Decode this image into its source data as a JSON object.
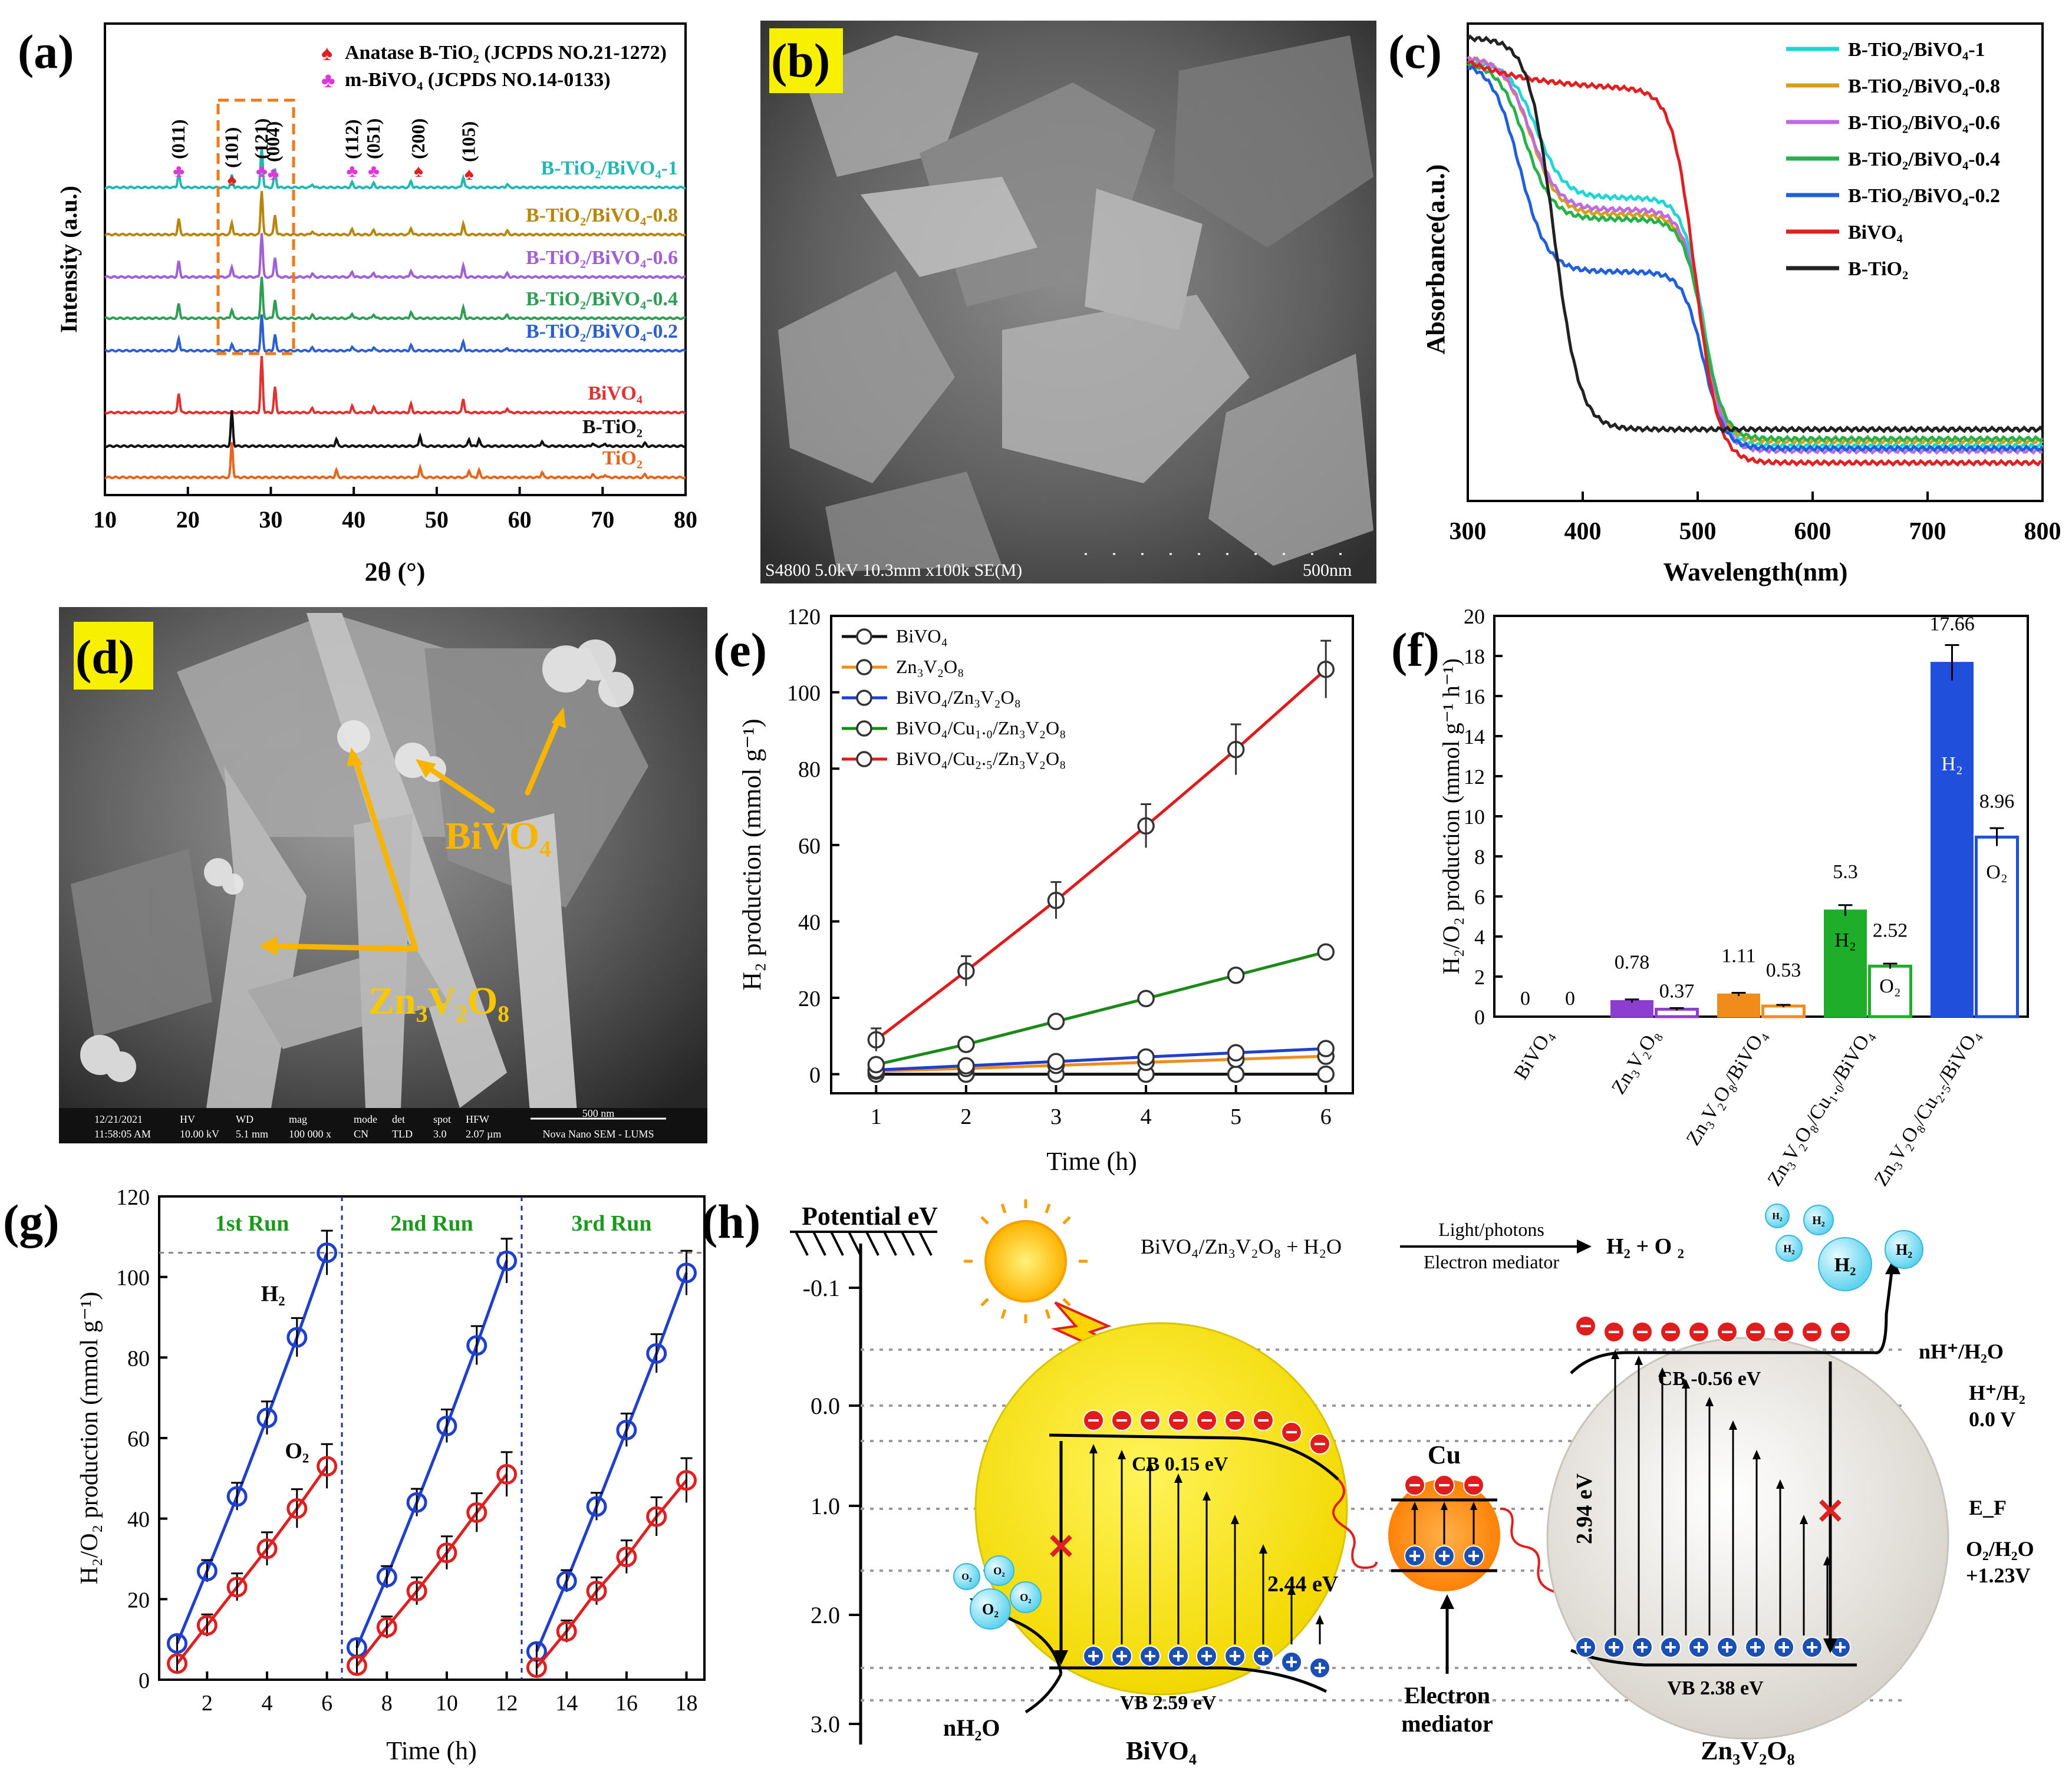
{
  "figure": {
    "panel_labels": [
      "(a)",
      "(b)",
      "(c)",
      "(d)",
      "(e)",
      "(f)",
      "(g)",
      "(h)"
    ]
  },
  "panel_a": {
    "ylabel": "Intensity (a.u.)",
    "xlabel": "2θ (°)",
    "xticks": [
      "10",
      "20",
      "30",
      "40",
      "50",
      "60",
      "70",
      "80"
    ],
    "legend": [
      "Anatase B-TiO₂ (JCPDS NO.21-1272)",
      "m-BiVO₄ (JCPDS NO.14-0133)"
    ],
    "peak_labels": [
      "(011)",
      "(101)",
      "(121)",
      "(004)",
      "(112)",
      "(051)",
      "(200)",
      "(105)"
    ],
    "trace_labels": [
      "B-TiO₂/BiVO₄-1",
      "B-TiO₂/BiVO₄-0.8",
      "B-TiO₂/BiVO₄-0.6",
      "B-TiO₂/BiVO₄-0.4",
      "B-TiO₂/BiVO₄-0.2",
      "BiVO₄",
      "B-TiO₂",
      "TiO₂"
    ],
    "trace_colors": [
      "#21b7b5",
      "#b8860b",
      "#a15fd6",
      "#2e9e55",
      "#2c5fcf",
      "#e03232",
      "#111111",
      "#e8631c"
    ]
  },
  "panel_b": {
    "scalebar_info": "S4800 5.0kV 10.3mm x100k SE(M)",
    "scalebar_len": "500nm"
  },
  "panel_c": {
    "ylabel": "Absorbance(a.u.)",
    "xlabel": "Wavelength(nm)",
    "xticks": [
      "300",
      "400",
      "500",
      "600",
      "700",
      "800"
    ],
    "legend": [
      "B-TiO₂/BiVO₄-1",
      "B-TiO₂/BiVO₄-0.8",
      "B-TiO₂/BiVO₄-0.6",
      "B-TiO₂/BiVO₄-0.4",
      "B-TiO₂/BiVO₄-0.2",
      "BiVO₄",
      "B-TiO₂"
    ],
    "colors": [
      "#1ed6d6",
      "#d4a017",
      "#c06ae0",
      "#25b24a",
      "#1f5fdb",
      "#e02020",
      "#222222"
    ]
  },
  "panel_d": {
    "label_bivo4": "BiVO₄",
    "label_znvo": "Zn₃V₂O₈",
    "footer": [
      "12/21/2021",
      "11:58:05 AM",
      "HV",
      "10.00 kV",
      "WD",
      "5.1 mm",
      "mag",
      "100 000 x",
      "mode",
      "CN",
      "det",
      "TLD",
      "spot",
      "3.0",
      "HFW",
      "2.07 µm",
      "500 nm",
      "Nova Nano SEM - LUMS"
    ]
  },
  "chart_data": [
    {
      "panel": "e",
      "type": "line",
      "title": "",
      "xlabel": "Time (h)",
      "ylabel": "H₂ production (mmol g⁻¹)",
      "xlim": [
        0.5,
        6.3
      ],
      "ylim": [
        -5,
        120
      ],
      "xticks": [
        "1",
        "2",
        "3",
        "4",
        "5",
        "6"
      ],
      "yticks": [
        "0",
        "20",
        "40",
        "60",
        "80",
        "100",
        "120"
      ],
      "x": [
        1,
        2,
        3,
        4,
        5,
        6
      ],
      "series": [
        {
          "name": "BiVO₄",
          "color": "#111111",
          "values": [
            0,
            0,
            0,
            0,
            0,
            0
          ]
        },
        {
          "name": "Zn₃V₂O₈",
          "color": "#f08c1a",
          "values": [
            0.8,
            1.5,
            2.3,
            3.1,
            3.9,
            4.7
          ]
        },
        {
          "name": "BiVO₄/Zn₃V₂O₈",
          "color": "#1f3fcf",
          "values": [
            1.1,
            2.2,
            3.3,
            4.5,
            5.6,
            6.7
          ]
        },
        {
          "name": "BiVO₄/Cu₁.₀/Zn₃V₂O₈",
          "color": "#1b8a1b",
          "values": [
            2.5,
            7.8,
            13.8,
            19.8,
            25.9,
            32
          ]
        },
        {
          "name": "BiVO₄/Cu₂.₅/Zn₃V₂O₈",
          "color": "#e01b1b",
          "values": [
            9,
            27,
            45.5,
            65,
            85,
            106
          ]
        }
      ],
      "legend_labels": [
        "BiVO₄",
        "Zn₃V₂O₈",
        "BiVO₄/Zn₃V₂O₈",
        "BiVO₄/Cu₁.₀/Zn₃V₂O₈",
        "BiVO₄/Cu₂.₅/Zn₃V₂O₈"
      ]
    },
    {
      "panel": "f",
      "type": "bar",
      "title": "",
      "xlabel": "",
      "ylabel": "H₂/O₂ production (mmol g⁻¹ h⁻¹)",
      "ylim": [
        0,
        20
      ],
      "yticks": [
        "0",
        "2",
        "4",
        "6",
        "8",
        "10",
        "12",
        "14",
        "16",
        "18",
        "20"
      ],
      "categories": [
        "BiVO₄",
        "Zn₃V₂O₈",
        "Zn₃V₂O₈/BiVO₄",
        "Zn₃V₂O₈/Cu₁.₀/BiVO₄",
        "Zn₃V₂O₈/Cu₂.₅/BiVO₄"
      ],
      "series": [
        {
          "name": "H₂",
          "values": [
            0,
            0.78,
            1.11,
            5.3,
            17.66
          ]
        },
        {
          "name": "O₂",
          "values": [
            0,
            0.37,
            0.53,
            2.52,
            8.96
          ]
        }
      ],
      "value_labels": {
        "h2": [
          "0",
          "0.78",
          "1.11",
          "5.3",
          "17.66"
        ],
        "o2": [
          "0",
          "0.37",
          "0.53",
          "2.52",
          "8.96"
        ]
      },
      "colors": [
        "#111111",
        "#8c3fcf",
        "#f08c1a",
        "#1fae2a",
        "#1f4fdb"
      ],
      "inbar_labels": [
        "H₂",
        "O₂",
        "H₂",
        "O₂"
      ]
    },
    {
      "panel": "g",
      "type": "line",
      "title": "",
      "xlabel": "Time (h)",
      "ylabel": "H₂/O₂ production (mmol g⁻¹)",
      "xlim": [
        0.4,
        18.6
      ],
      "ylim": [
        0,
        120
      ],
      "xticks": [
        "2",
        "4",
        "6",
        "8",
        "10",
        "12",
        "14",
        "16",
        "18"
      ],
      "yticks": [
        "0",
        "20",
        "40",
        "60",
        "80",
        "100",
        "120"
      ],
      "runs": [
        "1st Run",
        "2nd Run",
        "3rd Run"
      ],
      "series_labels": [
        "H₂",
        "O₂"
      ],
      "reference_y": 106,
      "series": [
        {
          "name": "H₂",
          "color": "#1f3fcf",
          "segments": [
            {
              "x": [
                1,
                2,
                3,
                4,
                5,
                6
              ],
              "y": [
                9,
                27,
                45.5,
                65,
                85,
                106
              ]
            },
            {
              "x": [
                7,
                8,
                9,
                10,
                11,
                12
              ],
              "y": [
                8,
                25.5,
                44,
                63,
                83,
                104
              ]
            },
            {
              "x": [
                13,
                14,
                15,
                16,
                17,
                18
              ],
              "y": [
                7,
                24.5,
                43,
                62,
                81,
                101
              ]
            }
          ]
        },
        {
          "name": "O₂",
          "color": "#e02020",
          "segments": [
            {
              "x": [
                1,
                2,
                3,
                4,
                5,
                6
              ],
              "y": [
                4,
                13.5,
                23,
                32.5,
                42.5,
                53
              ]
            },
            {
              "x": [
                7,
                8,
                9,
                10,
                11,
                12
              ],
              "y": [
                3.5,
                13,
                22,
                31.5,
                41.5,
                51
              ]
            },
            {
              "x": [
                13,
                14,
                15,
                16,
                17,
                18
              ],
              "y": [
                3,
                12,
                22,
                30.5,
                40.5,
                49.5
              ]
            }
          ]
        }
      ]
    }
  ],
  "panel_h": {
    "axis_title": "Potential eV",
    "yticks": [
      "-0.1",
      "0.0",
      "1.0",
      "2.0",
      "3.0"
    ],
    "reaction": "BiVO₄/Zn₃V₂O₈ + H₂O",
    "reaction_top": "Light/photons",
    "reaction_bottom": "Electron mediator",
    "products": "H₂ + O ₂",
    "bivo4_cb": "CB 0.15 eV",
    "bivo4_vb": "VB 2.59 eV",
    "bivo4_gap": "2.44 eV",
    "bivo4_name": "BiVO₄",
    "cu_label": "Cu",
    "mediator_label": "Electron mediator",
    "zn_cb": "CB -0.56 eV",
    "zn_vb": "VB 2.38 eV",
    "zn_gap": "2.94 eV",
    "zn_name": "Zn₃V₂O₈",
    "right_labels": [
      "nH⁺/H₂O",
      "H⁺/H₂",
      "0.0 V",
      "E_F",
      "O₂/H₂O",
      "+1.23V"
    ],
    "water": "nH₂O",
    "bubble_h2": "H₂",
    "bubble_o2": "O₂"
  }
}
